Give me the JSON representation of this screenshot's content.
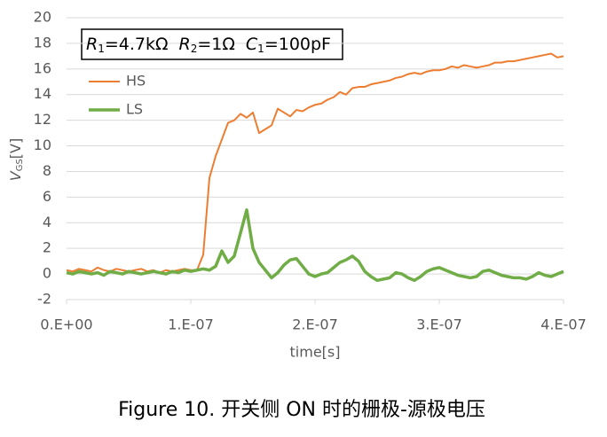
{
  "chart_data": {
    "type": "line",
    "x_label": "time[s]",
    "y_label": {
      "symbol": "V",
      "subscript": "GS",
      "unit": "[V]"
    },
    "annotation": [
      {
        "symbol": "R",
        "subscript": "1",
        "text": "=4.7kΩ"
      },
      {
        "symbol": "R",
        "subscript": "2",
        "text": "=1Ω"
      },
      {
        "symbol": "C",
        "subscript": "1",
        "text": "=100pF"
      }
    ],
    "caption": "Figure 10.  开关侧 ON 时的栅极-源极电压",
    "xlim": [
      0,
      4e-07
    ],
    "xticks": [
      {
        "value": 0,
        "label": "0.E+00"
      },
      {
        "value": 1e-07,
        "label": "1.E-07"
      },
      {
        "value": 2e-07,
        "label": "2.E-07"
      },
      {
        "value": 3e-07,
        "label": "3.E-07"
      },
      {
        "value": 4e-07,
        "label": "4.E-07"
      }
    ],
    "ylim": [
      -2,
      20
    ],
    "yticks": [
      -2,
      0,
      2,
      4,
      6,
      8,
      10,
      12,
      14,
      16,
      18,
      20
    ],
    "grid": true,
    "x": [
      0,
      5e-09,
      1e-08,
      1.5e-08,
      2e-08,
      2.5e-08,
      3e-08,
      3.5e-08,
      4e-08,
      4.5e-08,
      5e-08,
      5.5e-08,
      6e-08,
      6.5e-08,
      7e-08,
      7.5e-08,
      8e-08,
      8.5e-08,
      9e-08,
      9.5e-08,
      1e-07,
      1.05e-07,
      1.1e-07,
      1.15e-07,
      1.2e-07,
      1.25e-07,
      1.3e-07,
      1.35e-07,
      1.4e-07,
      1.45e-07,
      1.5e-07,
      1.55e-07,
      1.6e-07,
      1.65e-07,
      1.7e-07,
      1.75e-07,
      1.8e-07,
      1.85e-07,
      1.9e-07,
      1.95e-07,
      2e-07,
      2.05e-07,
      2.1e-07,
      2.15e-07,
      2.2e-07,
      2.25e-07,
      2.3e-07,
      2.35e-07,
      2.4e-07,
      2.45e-07,
      2.5e-07,
      2.55e-07,
      2.6e-07,
      2.65e-07,
      2.7e-07,
      2.75e-07,
      2.8e-07,
      2.85e-07,
      2.9e-07,
      2.95e-07,
      3e-07,
      3.05e-07,
      3.1e-07,
      3.15e-07,
      3.2e-07,
      3.25e-07,
      3.3e-07,
      3.35e-07,
      3.4e-07,
      3.45e-07,
      3.5e-07,
      3.55e-07,
      3.6e-07,
      3.65e-07,
      3.7e-07,
      3.75e-07,
      3.8e-07,
      3.85e-07,
      3.9e-07,
      3.95e-07,
      4e-07
    ],
    "series": [
      {
        "name": "HS",
        "color": "#ed7d31",
        "width": 2,
        "values": [
          0.3,
          0.2,
          0.4,
          0.3,
          0.2,
          0.5,
          0.3,
          0.2,
          0.4,
          0.3,
          0.2,
          0.3,
          0.4,
          0.2,
          0.3,
          0.1,
          0.3,
          0.2,
          0.3,
          0.4,
          0.3,
          0.3,
          1.5,
          7.5,
          9.2,
          10.5,
          11.8,
          12.0,
          12.5,
          12.2,
          12.6,
          11.0,
          11.3,
          11.6,
          12.9,
          12.6,
          12.3,
          12.8,
          12.7,
          13.0,
          13.2,
          13.3,
          13.6,
          13.8,
          14.2,
          14.0,
          14.5,
          14.6,
          14.6,
          14.8,
          14.9,
          15.0,
          15.1,
          15.3,
          15.4,
          15.6,
          15.7,
          15.6,
          15.8,
          15.9,
          15.9,
          16.0,
          16.2,
          16.1,
          16.3,
          16.2,
          16.1,
          16.2,
          16.3,
          16.5,
          16.5,
          16.6,
          16.6,
          16.7,
          16.8,
          16.9,
          17.0,
          17.1,
          17.2,
          16.9,
          17.0
        ]
      },
      {
        "name": "LS",
        "color": "#70ad47",
        "width": 3.5,
        "values": [
          0.1,
          0.0,
          0.2,
          0.1,
          0.0,
          0.1,
          -0.1,
          0.2,
          0.1,
          0.0,
          0.2,
          0.1,
          0.0,
          0.1,
          0.2,
          0.1,
          0.0,
          0.2,
          0.1,
          0.3,
          0.2,
          0.3,
          0.4,
          0.3,
          0.6,
          1.8,
          0.9,
          1.4,
          3.2,
          5.0,
          2.0,
          0.9,
          0.3,
          -0.3,
          0.1,
          0.7,
          1.1,
          1.2,
          0.6,
          0.0,
          -0.2,
          0.0,
          0.1,
          0.5,
          0.9,
          1.1,
          1.4,
          1.0,
          0.2,
          -0.2,
          -0.5,
          -0.4,
          -0.3,
          0.1,
          0.0,
          -0.3,
          -0.5,
          -0.2,
          0.2,
          0.4,
          0.5,
          0.3,
          0.1,
          -0.1,
          -0.2,
          -0.3,
          -0.2,
          0.2,
          0.3,
          0.1,
          -0.1,
          -0.2,
          -0.3,
          -0.3,
          -0.4,
          -0.2,
          0.1,
          -0.1,
          -0.2,
          0.0,
          0.2
        ]
      }
    ]
  }
}
